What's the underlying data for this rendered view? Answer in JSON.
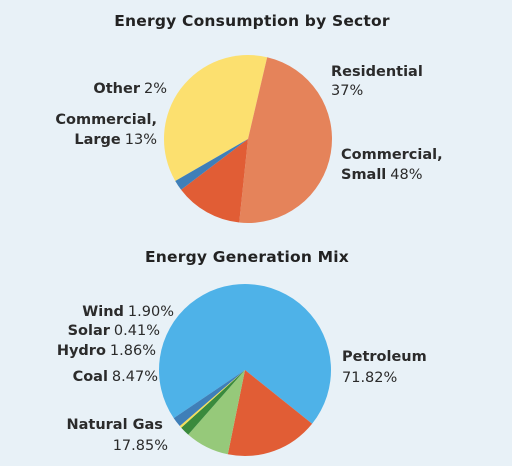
{
  "chart_data": [
    {
      "type": "pie",
      "title": "Energy Consumption by Sector",
      "slices": [
        {
          "label": "Residential",
          "value": 37,
          "value_text": "37%",
          "color": "#fce06f"
        },
        {
          "label": "Commercial, Small",
          "value": 48,
          "value_text": "48%",
          "color": "#e5835a"
        },
        {
          "label": "Commercial, Large",
          "value": 13,
          "value_text": "13%",
          "color": "#e15d35"
        },
        {
          "label": "Other",
          "value": 2,
          "value_text": "2%",
          "color": "#3f7fb8"
        }
      ]
    },
    {
      "type": "pie",
      "title": "Energy Generation Mix",
      "slices": [
        {
          "label": "Petroleum",
          "value": 71.82,
          "value_text": "71.82%",
          "color": "#4eb2e8"
        },
        {
          "label": "Natural Gas",
          "value": 17.85,
          "value_text": "17.85%",
          "color": "#e15d35"
        },
        {
          "label": "Coal",
          "value": 8.47,
          "value_text": "8.47%",
          "color": "#96c97a"
        },
        {
          "label": "Hydro",
          "value": 1.86,
          "value_text": "1.86%",
          "color": "#3a8a3c"
        },
        {
          "label": "Solar",
          "value": 0.41,
          "value_text": "0.41%",
          "color": "#f5df5a"
        },
        {
          "label": "Wind",
          "value": 1.9,
          "value_text": "1.90%",
          "color": "#3f7fb8"
        }
      ]
    }
  ]
}
